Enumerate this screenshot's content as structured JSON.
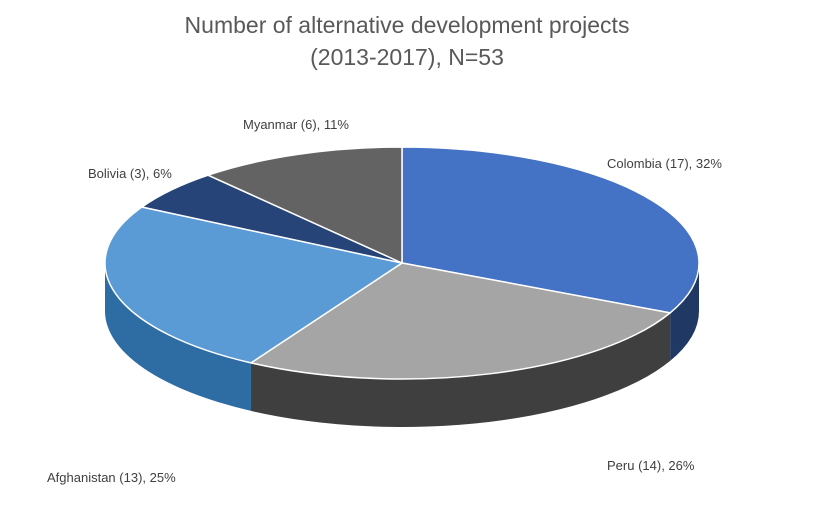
{
  "chart_data": {
    "type": "pie",
    "title_lines": [
      "Number of alternative development projects",
      "(2013-2017), N=53"
    ],
    "slices": [
      {
        "name": "Colombia",
        "count": 17,
        "percent": 32,
        "label": "Colombia (17), 32%",
        "color": "#4472C4",
        "side_color": "#1F3864"
      },
      {
        "name": "Peru",
        "count": 14,
        "percent": 26,
        "label": "Peru (14), 26%",
        "color": "#A5A5A5",
        "side_color": "#3F3F3F"
      },
      {
        "name": "Afghanistan",
        "count": 13,
        "percent": 25,
        "label": "Afghanistan (13), 25%",
        "color": "#5B9BD5",
        "side_color": "#2E6DA4"
      },
      {
        "name": "Bolivia",
        "count": 3,
        "percent": 6,
        "label": "Bolivia (3), 6%",
        "color": "#264478",
        "side_color": "#172A4A"
      },
      {
        "name": "Myanmar",
        "count": 6,
        "percent": 11,
        "label": "Myanmar (6), 11%",
        "color": "#636363",
        "side_color": "#3A3A3A"
      }
    ]
  }
}
